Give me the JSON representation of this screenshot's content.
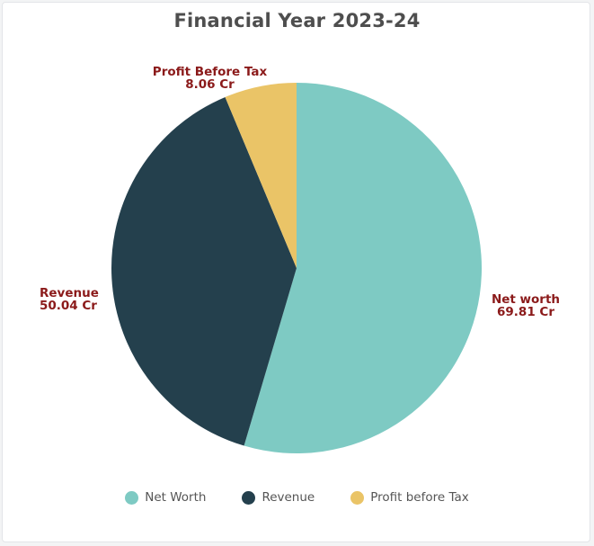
{
  "chart_data": {
    "type": "pie",
    "title": "Financial Year 2023-24",
    "slices": [
      {
        "name": "Net Worth",
        "value": 69.81,
        "label_line1": "Net worth",
        "label_line2": "69.81 Cr",
        "color": "#7ecac3"
      },
      {
        "name": "Revenue",
        "value": 50.04,
        "label_line1": "Revenue",
        "label_line2": "50.04 Cr",
        "color": "#24404d"
      },
      {
        "name": "Profit before Tax",
        "value": 8.06,
        "label_line1": "Profit Before Tax",
        "label_line2": "8.06 Cr",
        "color": "#eac467"
      }
    ],
    "legend": [
      "Net Worth",
      "Revenue",
      "Profit before Tax"
    ],
    "legend_position": "bottom",
    "label_color": "#8b1a1a"
  }
}
